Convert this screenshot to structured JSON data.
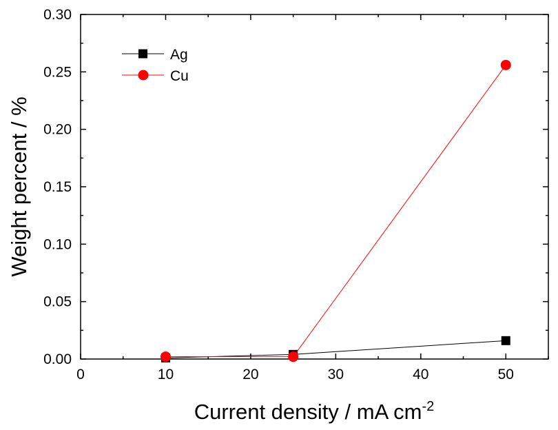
{
  "chart_data": {
    "type": "line",
    "title": "",
    "xlabel": "Current density / mA cm",
    "xlabel_superscript": "-2",
    "ylabel": "Weight percent / %",
    "xlim": [
      0,
      55
    ],
    "ylim": [
      0,
      0.3
    ],
    "x_ticks": [
      0,
      10,
      20,
      30,
      40,
      50
    ],
    "x_tick_labels": [
      "0",
      "10",
      "20",
      "30",
      "40",
      "50"
    ],
    "y_ticks": [
      0,
      0.05,
      0.1,
      0.15,
      0.2,
      0.25,
      0.3
    ],
    "y_tick_labels": [
      "0.00",
      "0.05",
      "0.10",
      "0.15",
      "0.20",
      "0.25",
      "0.30"
    ],
    "grid": false,
    "legend": "top-left",
    "series": [
      {
        "name": "Ag",
        "marker": "square",
        "color": "#000000",
        "x": [
          10,
          25,
          50
        ],
        "y": [
          0.001,
          0.004,
          0.016
        ]
      },
      {
        "name": "Cu",
        "marker": "circle",
        "color": "#ff0000",
        "x": [
          10,
          25,
          50
        ],
        "y": [
          0.002,
          0.002,
          0.256
        ]
      }
    ]
  }
}
